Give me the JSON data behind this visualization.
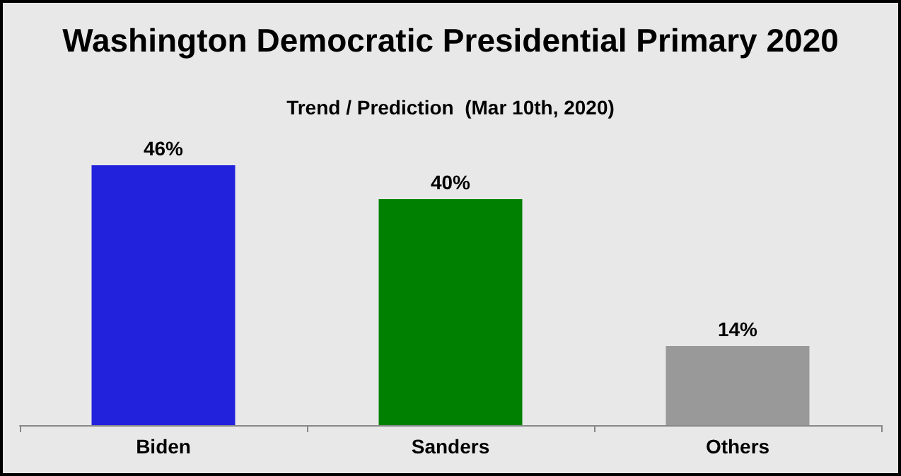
{
  "chart_data": {
    "type": "bar",
    "title": "Washington Democratic Presidential Primary 2020",
    "subtitle": "Trend / Prediction  (Mar 10th, 2020)",
    "categories": [
      "Biden",
      "Sanders",
      "Others"
    ],
    "values": [
      46,
      40,
      14
    ],
    "colors": [
      "#2222dd",
      "#008000",
      "#999999"
    ],
    "value_labels": [
      "46%",
      "40%",
      "14%"
    ]
  }
}
